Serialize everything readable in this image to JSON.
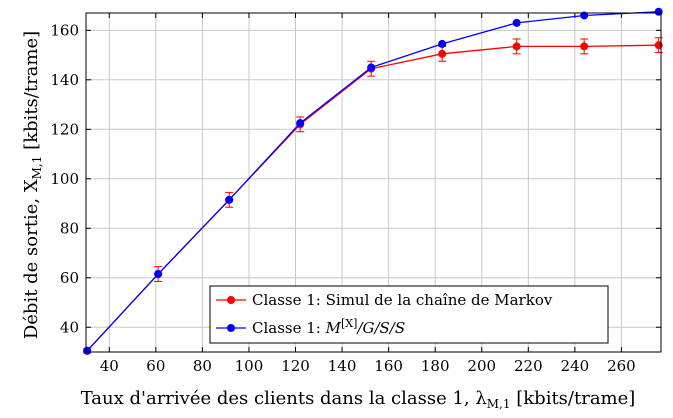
{
  "chart_data": {
    "type": "line",
    "xlabel": "Taux d'arrivée des clients dans la classe 1, λ",
    "xlabel_sub": "M,1",
    "xlabel_unit": " [kbits/trame]",
    "ylabel": "Débit de sortie, X",
    "ylabel_sub": "M,1",
    "ylabel_unit": " [kbits/trame]",
    "xlim": [
      30,
      277
    ],
    "ylim": [
      30,
      167
    ],
    "xticks": [
      40,
      60,
      80,
      100,
      120,
      140,
      160,
      180,
      200,
      220,
      240,
      260
    ],
    "yticks": [
      40,
      60,
      80,
      100,
      120,
      140,
      160
    ],
    "grid": true,
    "legend_position": "bottom-right",
    "series": [
      {
        "name": "Classe 1: Simul de la chaîne de Markov",
        "color": "#ff0000",
        "x": [
          30.5,
          61,
          91.5,
          122,
          152.5,
          183,
          215,
          244,
          276
        ],
        "y": [
          30.5,
          61.5,
          91.5,
          122,
          144.5,
          150.5,
          153.5,
          153.5,
          154
        ],
        "error": [
          0.8,
          3.0,
          3.0,
          3.0,
          3.0,
          3.0,
          3.0,
          3.0,
          3.0
        ],
        "marker": "circle"
      },
      {
        "name": "Classe 1: M^[X]/G/S/S",
        "color": "#0000ff",
        "x": [
          30.5,
          61,
          91.5,
          122,
          152.5,
          183,
          215,
          244,
          276
        ],
        "y": [
          30.5,
          61.5,
          91.5,
          122.5,
          145,
          154.5,
          163,
          166,
          167.5
        ],
        "marker": "circle"
      }
    ]
  }
}
